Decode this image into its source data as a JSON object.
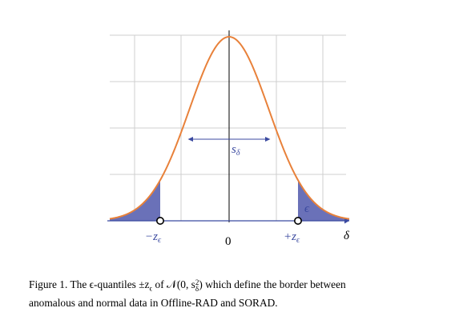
{
  "figure": {
    "curve_color": "#e8813a",
    "fill_color": "#6a71b8",
    "axis_color": "#000000",
    "blue_color": "#3b4aa0",
    "grid_color": "#cfcfcf",
    "labels": {
      "neg_z": "−z",
      "z_sub": "ϵ",
      "pos_z": "+z",
      "zero": "0",
      "delta": "δ",
      "s_delta": "s",
      "s_sub": "δ",
      "epsilon": "ϵ"
    }
  },
  "caption": {
    "line1": "Figure 1.  The ϵ-quantiles ±z",
    "line1_sub": "ϵ",
    "line1_mid": " of 𝒩(0, s",
    "line1_sup": "2",
    "line1_sub2": "δ",
    "line1_end": ") which define the border between",
    "line2": "anomalous and normal data in Offline-RAD and SORAD."
  }
}
